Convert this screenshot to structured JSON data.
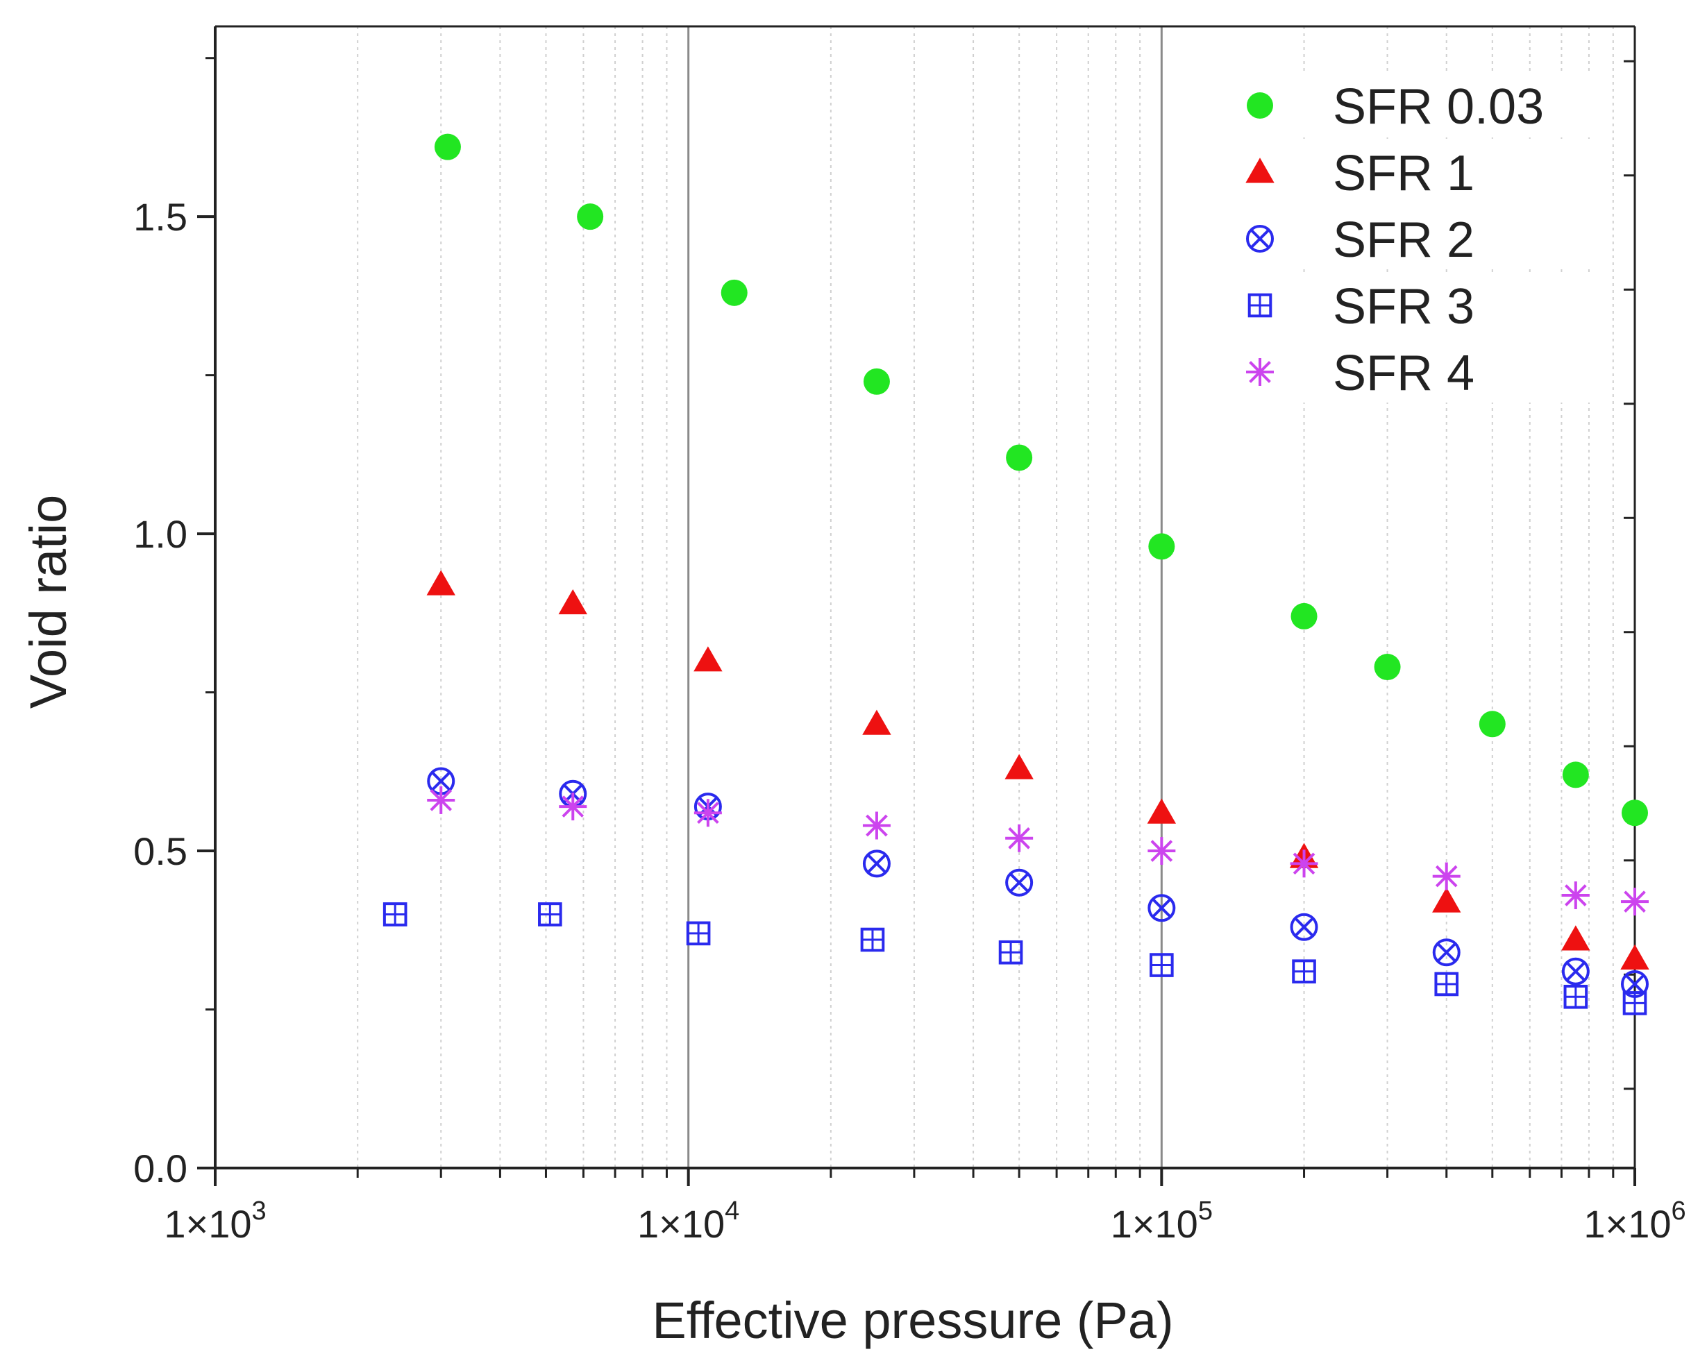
{
  "chart_data": {
    "type": "scatter",
    "title": "",
    "xlabel": "Effective pressure (Pa)",
    "ylabel": "Void ratio",
    "x_scale": "log",
    "xlim": [
      1000,
      1000000
    ],
    "ylim": [
      0,
      1.8
    ],
    "x_ticks": [
      1000,
      10000,
      100000,
      1000000
    ],
    "x_tick_labels": [
      {
        "mantissa": "1×10",
        "exp": "3"
      },
      {
        "mantissa": "1×10",
        "exp": "4"
      },
      {
        "mantissa": "1×10",
        "exp": "5"
      },
      {
        "mantissa": "1×10",
        "exp": "6"
      }
    ],
    "y_ticks": [
      0,
      0.5,
      1.0,
      1.5
    ],
    "y_tick_labels": [
      "0.0",
      "0.5",
      "1.0",
      "1.5"
    ],
    "grid": true,
    "legend_position": "top-right",
    "series": [
      {
        "name": "SFR 0.03",
        "marker": "filled-circle",
        "color": "#22e622",
        "points": [
          [
            3100,
            1.61
          ],
          [
            6200,
            1.5
          ],
          [
            12500,
            1.38
          ],
          [
            25000,
            1.24
          ],
          [
            50000,
            1.12
          ],
          [
            100000,
            0.98
          ],
          [
            200000,
            0.87
          ],
          [
            300000,
            0.79
          ],
          [
            500000,
            0.7
          ],
          [
            750000,
            0.62
          ],
          [
            1000000,
            0.56
          ]
        ]
      },
      {
        "name": "SFR 1",
        "marker": "filled-triangle",
        "color": "#ee1111",
        "points": [
          [
            3000,
            0.92
          ],
          [
            5700,
            0.89
          ],
          [
            11000,
            0.8
          ],
          [
            25000,
            0.7
          ],
          [
            50000,
            0.63
          ],
          [
            100000,
            0.56
          ],
          [
            200000,
            0.49
          ],
          [
            400000,
            0.42
          ],
          [
            750000,
            0.36
          ],
          [
            1000000,
            0.33
          ]
        ]
      },
      {
        "name": "SFR 2",
        "marker": "circle-x",
        "color": "#2a2aee",
        "points": [
          [
            3000,
            0.61
          ],
          [
            5700,
            0.59
          ],
          [
            11000,
            0.57
          ],
          [
            25000,
            0.48
          ],
          [
            50000,
            0.45
          ],
          [
            100000,
            0.41
          ],
          [
            200000,
            0.38
          ],
          [
            400000,
            0.34
          ],
          [
            750000,
            0.31
          ],
          [
            1000000,
            0.29
          ]
        ]
      },
      {
        "name": "SFR 3",
        "marker": "square-plus",
        "color": "#2a2aee",
        "points": [
          [
            2400,
            0.4
          ],
          [
            5100,
            0.4
          ],
          [
            10500,
            0.37
          ],
          [
            24500,
            0.36
          ],
          [
            48000,
            0.34
          ],
          [
            100000,
            0.32
          ],
          [
            200000,
            0.31
          ],
          [
            400000,
            0.29
          ],
          [
            750000,
            0.27
          ],
          [
            1000000,
            0.26
          ]
        ]
      },
      {
        "name": "SFR 4",
        "marker": "asterisk",
        "color": "#cc44ee",
        "points": [
          [
            3000,
            0.58
          ],
          [
            5700,
            0.57
          ],
          [
            11000,
            0.56
          ],
          [
            25000,
            0.54
          ],
          [
            50000,
            0.52
          ],
          [
            100000,
            0.5
          ],
          [
            200000,
            0.48
          ],
          [
            400000,
            0.46
          ],
          [
            750000,
            0.43
          ],
          [
            1000000,
            0.42
          ]
        ]
      }
    ]
  }
}
